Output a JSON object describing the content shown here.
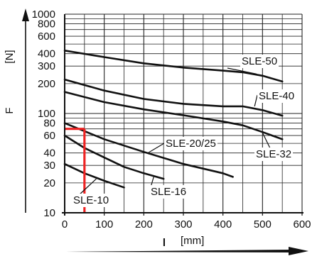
{
  "chart_data": {
    "type": "line",
    "title": "",
    "y_axis": {
      "symbol": "F",
      "unit": "[N]",
      "scale": "log",
      "range": [
        10,
        1000
      ],
      "ticks": [
        10,
        20,
        30,
        40,
        60,
        80,
        100,
        200,
        300,
        400,
        600,
        800,
        1000
      ],
      "tick_labels": [
        "10",
        "20",
        "30",
        "40",
        "60",
        "80",
        "100",
        "200",
        "300",
        "400",
        "600",
        "800",
        "1000"
      ]
    },
    "x_axis": {
      "symbol": "l",
      "unit": "[mm]",
      "scale": "linear",
      "range": [
        0,
        600
      ],
      "ticks": [
        0,
        100,
        200,
        300,
        400,
        500,
        600
      ],
      "tick_labels": [
        "0",
        "100",
        "200",
        "300",
        "400",
        "500",
        "600"
      ]
    },
    "grid": true,
    "series": [
      {
        "name": "SLE-50",
        "x": [
          0,
          100,
          200,
          300,
          400,
          450,
          500,
          550
        ],
        "y": [
          430,
          370,
          320,
          290,
          270,
          260,
          240,
          210
        ]
      },
      {
        "name": "SLE-40",
        "x": [
          0,
          100,
          200,
          300,
          400,
          450,
          500,
          550
        ],
        "y": [
          220,
          170,
          140,
          125,
          118,
          118,
          108,
          95
        ]
      },
      {
        "name": "SLE-32",
        "x": [
          0,
          100,
          200,
          300,
          400,
          450,
          500,
          550
        ],
        "y": [
          165,
          130,
          110,
          96,
          83,
          76,
          65,
          55
        ]
      },
      {
        "name": "SLE-20/25",
        "x": [
          0,
          100,
          200,
          300,
          400,
          425
        ],
        "y": [
          80,
          55,
          41,
          31,
          25,
          23
        ]
      },
      {
        "name": "SLE-16",
        "x": [
          0,
          50,
          100,
          150,
          200,
          250
        ],
        "y": [
          60,
          45,
          36,
          29,
          25,
          22
        ]
      },
      {
        "name": "SLE-10",
        "x": [
          0,
          50,
          100,
          150
        ],
        "y": [
          31,
          25,
          21,
          18
        ]
      }
    ],
    "annotation": {
      "color": "#ee2222",
      "x": 50,
      "y": 70,
      "x_range": [
        0,
        50
      ],
      "y_range": [
        10,
        70
      ]
    }
  }
}
